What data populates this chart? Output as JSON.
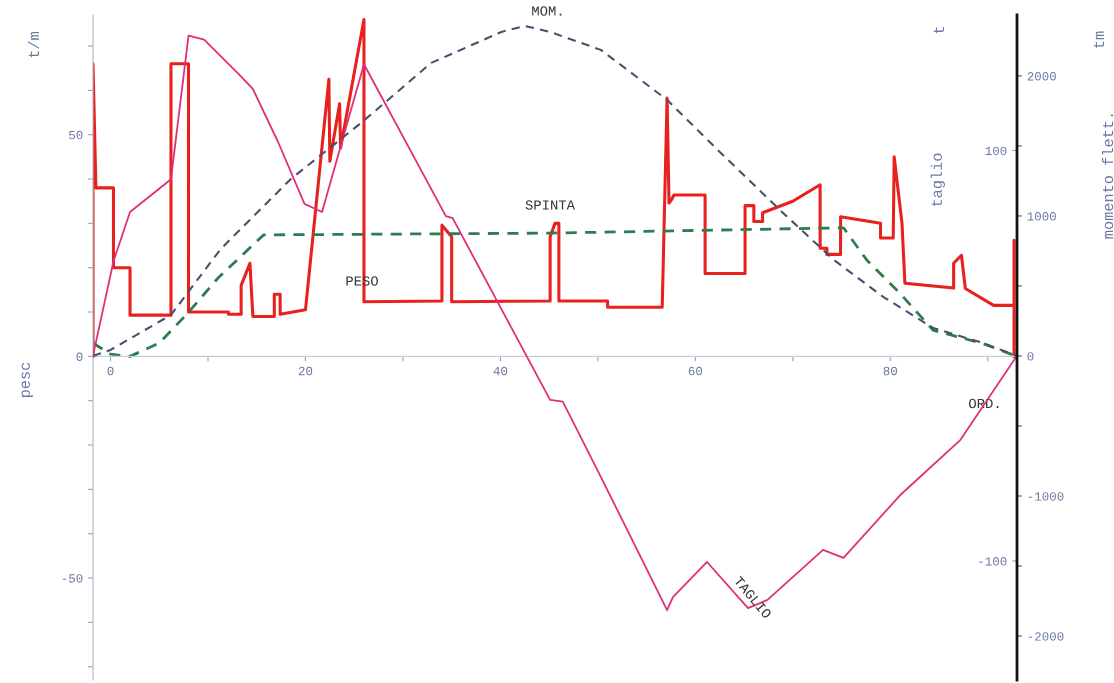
{
  "chart_data": {
    "type": "line",
    "xlabel": "ORD.",
    "ylabel": "pesc",
    "y2label": "taglio",
    "y3label": "momento flett.",
    "xlim": [
      -1.8,
      93
    ],
    "xticks": [
      0,
      {
        "value": 10,
        "label": null
      },
      20,
      {
        "value": 30,
        "label": null
      },
      40,
      {
        "value": 50,
        "label": null
      },
      60,
      {
        "value": 70,
        "label": null
      },
      80,
      {
        "value": 90,
        "label": null
      }
    ],
    "ylim": [
      -73,
      77
    ],
    "yticks": [
      {
        "value": -70,
        "label": null
      },
      {
        "value": -60,
        "label": null
      },
      -50,
      {
        "value": -40,
        "label": null
      },
      {
        "value": -30,
        "label": null
      },
      {
        "value": -20,
        "label": null
      },
      {
        "value": -10,
        "label": null
      },
      0,
      {
        "value": 10,
        "label": null
      },
      {
        "value": 20,
        "label": null
      },
      {
        "value": 30,
        "label": null
      },
      {
        "value": 40,
        "label": null
      },
      50,
      {
        "value": 60,
        "label": null
      },
      {
        "value": 70,
        "label": null
      }
    ],
    "y2lim": [
      -158,
      166
    ],
    "y2ticks": [
      -100,
      100
    ],
    "y3lim": [
      -2314,
      2435
    ],
    "y3ticks": [
      -2000,
      {
        "value": -1500,
        "label": null
      },
      -1000,
      {
        "value": -500,
        "label": null
      },
      0,
      {
        "value": 500,
        "label": null
      },
      1000,
      {
        "value": 1500,
        "label": null
      },
      2000
    ],
    "marker": "none",
    "series": [
      {
        "axis": "y",
        "color": "#e8201e",
        "line_style": "solid",
        "x": [
          -1.8,
          -1.8,
          -1.5,
          0.3,
          0.3,
          2,
          2,
          6.2,
          6.2,
          8,
          8,
          12.1,
          12.1,
          13.4,
          13.4,
          14.3,
          14.6,
          16.8,
          16.8,
          17.4,
          17.4,
          20,
          22.4,
          22.5,
          23.5,
          23.6,
          26,
          26,
          34,
          34,
          35,
          35,
          45.1,
          45.1,
          45.6,
          46,
          46,
          51,
          51,
          56.6,
          57.1,
          57.3,
          57.6,
          57.8,
          61,
          61,
          65.1,
          65.1,
          66,
          66,
          66.9,
          66.9,
          70,
          72.8,
          72.8,
          73.5,
          73.5,
          74.9,
          74.9,
          79,
          79,
          80.3,
          80.4,
          81.2,
          81.5,
          86.5,
          86.5,
          87.3,
          87.7,
          90.6,
          92.7,
          92.7,
          92.7
        ],
        "values": [
          0,
          66,
          38,
          38,
          20,
          20,
          9.3,
          9.3,
          66,
          66,
          10,
          10,
          9.5,
          9.5,
          16,
          21,
          9,
          9,
          14,
          14,
          9.5,
          10.5,
          62.5,
          44,
          57,
          47,
          76,
          12.3,
          12.5,
          29.6,
          27,
          12.3,
          12.5,
          27,
          30,
          30,
          12.5,
          12.5,
          11.1,
          11.1,
          58.3,
          34.6,
          35.5,
          36.4,
          36.4,
          18.7,
          18.7,
          34,
          34,
          30.4,
          30.4,
          32.4,
          35,
          38.7,
          24.4,
          24.4,
          23,
          23,
          31.5,
          30,
          26.7,
          26.7,
          45,
          30,
          16.5,
          15.4,
          21,
          22.8,
          15.3,
          11.5,
          11.5,
          26.2,
          0
        ]
      },
      {
        "axis": "y2",
        "color": "#e0307a",
        "line_style": "solid",
        "x": [
          -1.8,
          0.3,
          2,
          6.2,
          8,
          9.6,
          13.2,
          14.6,
          17.2,
          19.9,
          21.7,
          26,
          34.4,
          35.1,
          45.1,
          46.4,
          50.3,
          57.1,
          57.7,
          61.2,
          65.4,
          67.4,
          73.1,
          75.2,
          81,
          87.2,
          93
        ],
        "values": [
          0,
          46,
          70,
          86,
          156,
          154,
          137,
          130,
          104,
          74,
          70,
          142,
          68,
          67,
          -21.5,
          -22.4,
          -59,
          -124,
          -117.6,
          -100.5,
          -123,
          -119,
          -94.6,
          -98.5,
          -68,
          -41,
          0
        ]
      },
      {
        "axis": "y3",
        "color": "#4a4f6e",
        "line_style": "dashed",
        "x": [
          -1.8,
          0,
          6.2,
          11.3,
          18.5,
          25.7,
          32.9,
          40.1,
          42.5,
          45.1,
          50.3,
          57.1,
          62.3,
          69,
          74.2,
          79.3,
          84.4,
          89.5,
          93
        ],
        "values": [
          0,
          43,
          293,
          764,
          1264,
          1664,
          2093,
          2314,
          2357,
          2314,
          2186,
          1829,
          1471,
          1021,
          686,
          421,
          200,
          93,
          0
        ]
      },
      {
        "axis": "y",
        "color": "#2e7d4f",
        "line_style": "dashed",
        "x": [
          -1.8,
          0,
          2,
          5,
          7.9,
          11,
          15.7,
          45,
          75.2,
          77.6,
          81,
          84.4,
          89.5,
          93
        ],
        "values": [
          3,
          0.5,
          0,
          3,
          9.7,
          17.6,
          27.4,
          27.8,
          29,
          21.7,
          14.2,
          5.9,
          2.9,
          0
        ]
      }
    ],
    "annotations": [
      "t/m",
      "t",
      "tm",
      "PESO",
      "SPINTA",
      "MOM.",
      "TAGLIO"
    ]
  }
}
